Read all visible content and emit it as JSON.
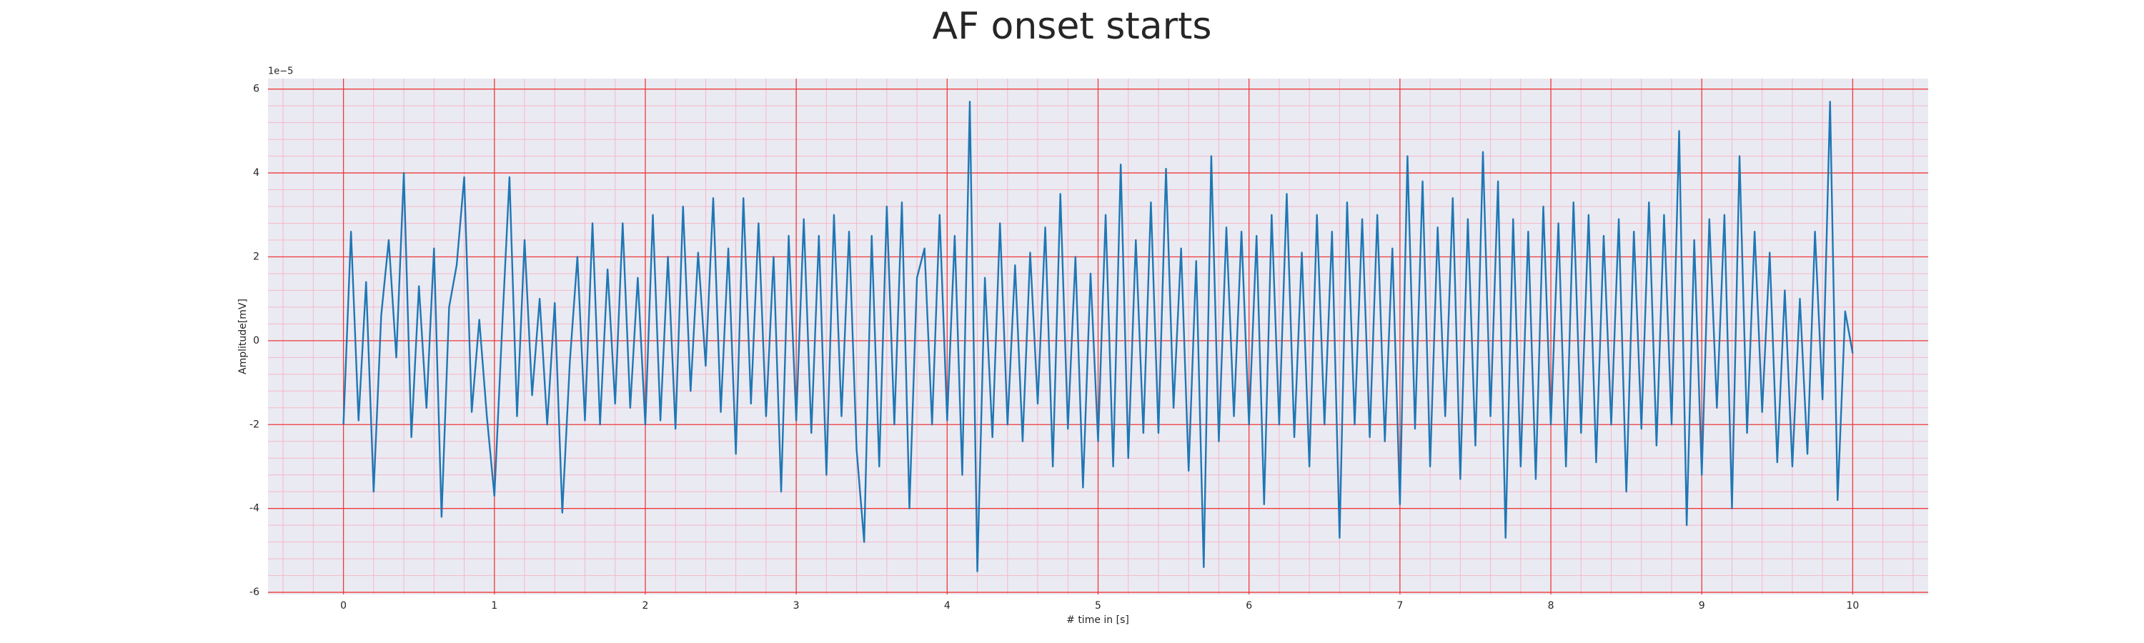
{
  "chart_data": {
    "type": "line",
    "title": "AF onset starts",
    "x_label": "# time in [s]",
    "y_label": "Amplitude[mV]",
    "y_offset_label": "1e−5",
    "xlim": [
      -0.5,
      10.5
    ],
    "ylim": [
      -6.05,
      6.25
    ],
    "xticks": [
      0,
      1,
      2,
      3,
      4,
      5,
      6,
      7,
      8,
      9,
      10
    ],
    "yticks": [
      -6,
      -4,
      -2,
      0,
      2,
      4,
      6
    ],
    "grid": true,
    "minor_grid": true,
    "series": [
      {
        "color": "#1f77b4",
        "x": [
          0,
          0.05,
          0.1,
          0.15,
          0.2,
          0.25,
          0.3,
          0.35,
          0.4,
          0.45,
          0.5,
          0.55,
          0.6,
          0.65,
          0.7,
          0.75,
          0.8,
          0.85,
          0.9,
          0.95,
          1,
          1.05,
          1.1,
          1.15,
          1.2,
          1.25,
          1.3,
          1.35,
          1.4,
          1.45,
          1.5,
          1.55,
          1.6,
          1.65,
          1.7,
          1.75,
          1.8,
          1.85,
          1.9,
          1.95,
          2,
          2.05,
          2.1,
          2.15,
          2.2,
          2.25,
          2.3,
          2.35,
          2.4,
          2.45,
          2.5,
          2.55,
          2.6,
          2.65,
          2.7,
          2.75,
          2.8,
          2.85,
          2.9,
          2.95,
          3,
          3.05,
          3.1,
          3.15,
          3.2,
          3.25,
          3.3,
          3.35,
          3.4,
          3.45,
          3.5,
          3.55,
          3.6,
          3.65,
          3.7,
          3.75,
          3.8,
          3.85,
          3.9,
          3.95,
          4,
          4.05,
          4.1,
          4.15,
          4.2,
          4.25,
          4.3,
          4.35,
          4.4,
          4.45,
          4.5,
          4.55,
          4.6,
          4.65,
          4.7,
          4.75,
          4.8,
          4.85,
          4.9,
          4.95,
          5,
          5.05,
          5.1,
          5.15,
          5.2,
          5.25,
          5.3,
          5.35,
          5.4,
          5.45,
          5.5,
          5.55,
          5.6,
          5.65,
          5.7,
          5.75,
          5.8,
          5.85,
          5.9,
          5.95,
          6,
          6.05,
          6.1,
          6.15,
          6.2,
          6.25,
          6.3,
          6.35,
          6.4,
          6.45,
          6.5,
          6.55,
          6.6,
          6.65,
          6.7,
          6.75,
          6.8,
          6.85,
          6.9,
          6.95,
          7,
          7.05,
          7.1,
          7.15,
          7.2,
          7.25,
          7.3,
          7.35,
          7.4,
          7.45,
          7.5,
          7.55,
          7.6,
          7.65,
          7.7,
          7.75,
          7.8,
          7.85,
          7.9,
          7.95,
          8,
          8.05,
          8.1,
          8.15,
          8.2,
          8.25,
          8.3,
          8.35,
          8.4,
          8.45,
          8.5,
          8.55,
          8.6,
          8.65,
          8.7,
          8.75,
          8.8,
          8.85,
          8.9,
          8.95,
          9,
          9.05,
          9.1,
          9.15,
          9.2,
          9.25,
          9.3,
          9.35,
          9.4,
          9.45,
          9.5,
          9.55,
          9.6,
          9.65,
          9.7,
          9.75,
          9.8,
          9.85,
          9.9,
          9.95,
          10
        ],
        "values": [
          -2.0,
          2.6,
          -1.9,
          1.4,
          -3.6,
          0.6,
          2.4,
          -0.4,
          4.0,
          -2.3,
          1.3,
          -1.6,
          2.2,
          -4.2,
          0.8,
          1.8,
          3.9,
          -1.7,
          0.5,
          -1.8,
          -3.7,
          0.2,
          3.9,
          -1.8,
          2.4,
          -1.3,
          1.0,
          -2.0,
          0.9,
          -4.1,
          -0.5,
          2.0,
          -1.9,
          2.8,
          -2.0,
          1.7,
          -1.5,
          2.8,
          -1.6,
          1.5,
          -2.0,
          3.0,
          -1.9,
          2.0,
          -2.1,
          3.2,
          -1.2,
          2.1,
          -0.6,
          3.4,
          -1.7,
          2.2,
          -2.7,
          3.4,
          -1.5,
          2.8,
          -1.8,
          2.0,
          -3.6,
          2.5,
          -1.9,
          2.9,
          -2.2,
          2.5,
          -3.2,
          3.0,
          -1.8,
          2.6,
          -2.6,
          -4.8,
          2.5,
          -3.0,
          3.2,
          -2.0,
          3.3,
          -4.0,
          1.5,
          2.2,
          -2.0,
          3.0,
          -1.9,
          2.5,
          -3.2,
          5.7,
          -5.5,
          1.5,
          -2.3,
          2.8,
          -2.0,
          1.8,
          -2.4,
          2.1,
          -1.5,
          2.7,
          -3.0,
          3.5,
          -2.1,
          2.0,
          -3.5,
          1.6,
          -2.4,
          3.0,
          -3.0,
          4.2,
          -2.8,
          2.4,
          -2.2,
          3.3,
          -2.2,
          4.1,
          -1.6,
          2.2,
          -3.1,
          1.9,
          -5.4,
          4.4,
          -2.4,
          2.7,
          -1.8,
          2.6,
          -2.0,
          2.5,
          -3.9,
          3.0,
          -2.0,
          3.5,
          -2.3,
          2.1,
          -3.0,
          3.0,
          -2.0,
          2.6,
          -4.7,
          3.3,
          -2.0,
          2.9,
          -2.3,
          3.0,
          -2.4,
          2.2,
          -3.9,
          4.4,
          -2.1,
          3.8,
          -3.0,
          2.7,
          -1.8,
          3.4,
          -3.3,
          2.9,
          -2.5,
          4.5,
          -1.8,
          3.8,
          -4.7,
          2.9,
          -3.0,
          2.6,
          -3.3,
          3.2,
          -2.0,
          2.8,
          -3.0,
          3.3,
          -2.2,
          3.0,
          -2.9,
          2.5,
          -2.0,
          2.9,
          -3.6,
          2.6,
          -2.1,
          3.3,
          -2.5,
          3.0,
          -2.0,
          5.0,
          -4.4,
          2.4,
          -3.2,
          2.9,
          -1.6,
          3.0,
          -4.0,
          4.4,
          -2.2,
          2.6,
          -1.7,
          2.1,
          -2.9,
          1.2,
          -3.0,
          1.0,
          -2.7,
          2.6,
          -1.4,
          5.7,
          -3.8,
          0.7,
          -0.3
        ]
      }
    ]
  }
}
